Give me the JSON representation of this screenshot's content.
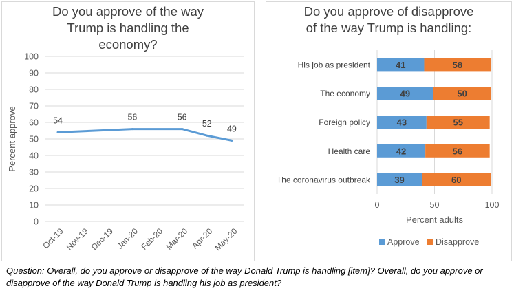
{
  "chart_data": [
    {
      "type": "line",
      "title_lines": [
        "Do you approve of the way",
        "Trump is handling the",
        "economy?"
      ],
      "ylabel": "Percent approve",
      "ylim": [
        0,
        100
      ],
      "yticks": [
        0,
        10,
        20,
        30,
        40,
        50,
        60,
        70,
        80,
        90,
        100
      ],
      "x": [
        "Oct-19",
        "Nov-19",
        "Dec-19",
        "Jan-20",
        "Feb-20",
        "Mar-20",
        "Apr-20",
        "May-20"
      ],
      "points": [
        {
          "x": "Oct-19",
          "y": 54,
          "label": "54"
        },
        {
          "x": "Jan-20",
          "y": 56,
          "label": "56"
        },
        {
          "x": "Mar-20",
          "y": 56,
          "label": "56"
        },
        {
          "x": "Apr-20",
          "y": 52,
          "label": "52"
        },
        {
          "x": "May-20",
          "y": 49,
          "label": "49"
        }
      ],
      "line_color": "#5b9bd5",
      "grid": true
    },
    {
      "type": "bar",
      "orientation": "horizontal",
      "stacked": true,
      "title_lines": [
        "Do you approve of disapprove",
        "of the way Trump is handling:"
      ],
      "xlabel": "Percent adults",
      "xlim": [
        0,
        100
      ],
      "xticks": [
        0,
        50,
        100
      ],
      "categories": [
        "His job as president",
        "The economy",
        "Foreign policy",
        "Health care",
        "The coronavirus outbreak"
      ],
      "series": [
        {
          "name": "Approve",
          "color": "#5b9bd5",
          "values": [
            41,
            49,
            43,
            42,
            39
          ]
        },
        {
          "name": "Disapprove",
          "color": "#ed7d31",
          "values": [
            58,
            50,
            55,
            56,
            60
          ]
        }
      ],
      "legend": "bottom",
      "grid": true
    }
  ],
  "caption": "Question: Overall, do you approve or disapprove of the way Donald Trump is handling [item]? Overall, do you approve or disapprove of the way Donald Trump is handling his job as president?"
}
